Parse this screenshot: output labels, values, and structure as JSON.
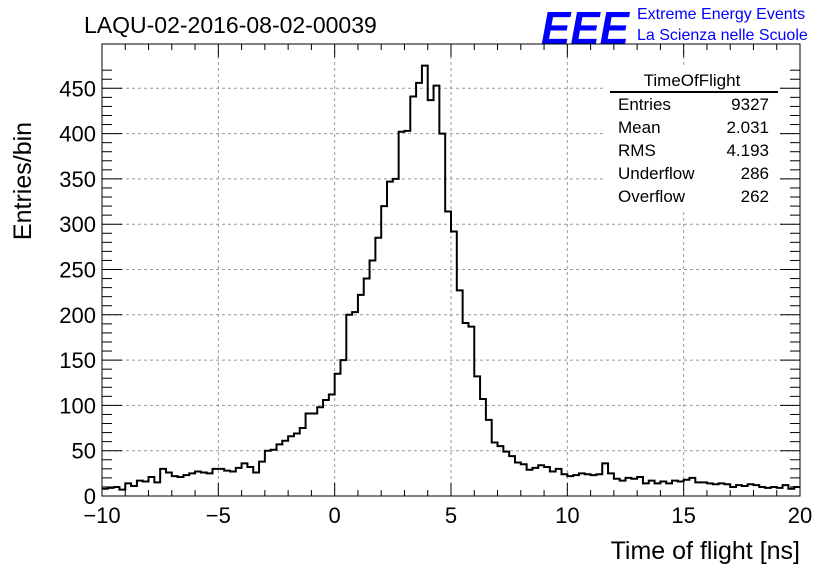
{
  "header": {
    "run_title": "LAQU-02-2016-08-02-00039",
    "logo_text": "EEE",
    "brand_line1": "Extreme Energy Events",
    "brand_line2": "La Scienza nelle Scuole",
    "brand_color": "#0000ff"
  },
  "stats_box": {
    "title": "TimeOfFlight",
    "rows": [
      {
        "label": "Entries",
        "value": "9327"
      },
      {
        "label": "Mean",
        "value": "2.031"
      },
      {
        "label": "RMS",
        "value": "4.193"
      },
      {
        "label": "Underflow",
        "value": "286"
      },
      {
        "label": "Overflow",
        "value": "262"
      }
    ]
  },
  "chart_data": {
    "type": "bar",
    "style": "step-histogram",
    "xlabel": "Time of flight [ns]",
    "ylabel": "Entries/bin",
    "xlim": [
      -10,
      20
    ],
    "ylim": [
      0,
      480
    ],
    "grid": true,
    "x_ticks": [
      "−10",
      "−5",
      "0",
      "5",
      "10",
      "15",
      "20"
    ],
    "y_ticks": [
      "0",
      "50",
      "100",
      "150",
      "200",
      "250",
      "300",
      "350",
      "400",
      "450"
    ],
    "bin_width": 0.25,
    "bin_start": -10,
    "values": [
      8,
      9,
      10,
      7,
      14,
      11,
      17,
      16,
      21,
      15,
      30,
      26,
      22,
      21,
      23,
      25,
      27,
      26,
      25,
      30,
      30,
      28,
      27,
      31,
      36,
      32,
      26,
      38,
      50,
      51,
      57,
      61,
      66,
      69,
      75,
      91,
      91,
      98,
      106,
      112,
      135,
      150,
      200,
      203,
      222,
      240,
      260,
      285,
      320,
      347,
      350,
      402,
      403,
      441,
      456,
      475,
      437,
      453,
      400,
      314,
      292,
      227,
      191,
      187,
      132,
      107,
      84,
      59,
      55,
      49,
      44,
      37,
      35,
      29,
      31,
      34,
      32,
      27,
      30,
      24,
      22,
      23,
      25,
      24,
      23,
      24,
      36,
      25,
      19,
      17,
      20,
      19,
      21,
      14,
      17,
      14,
      16,
      14,
      17,
      16,
      18,
      20,
      15,
      15,
      14,
      13,
      14,
      13,
      10,
      12,
      11,
      13,
      12,
      10,
      9,
      10,
      9,
      12,
      8,
      10
    ]
  }
}
